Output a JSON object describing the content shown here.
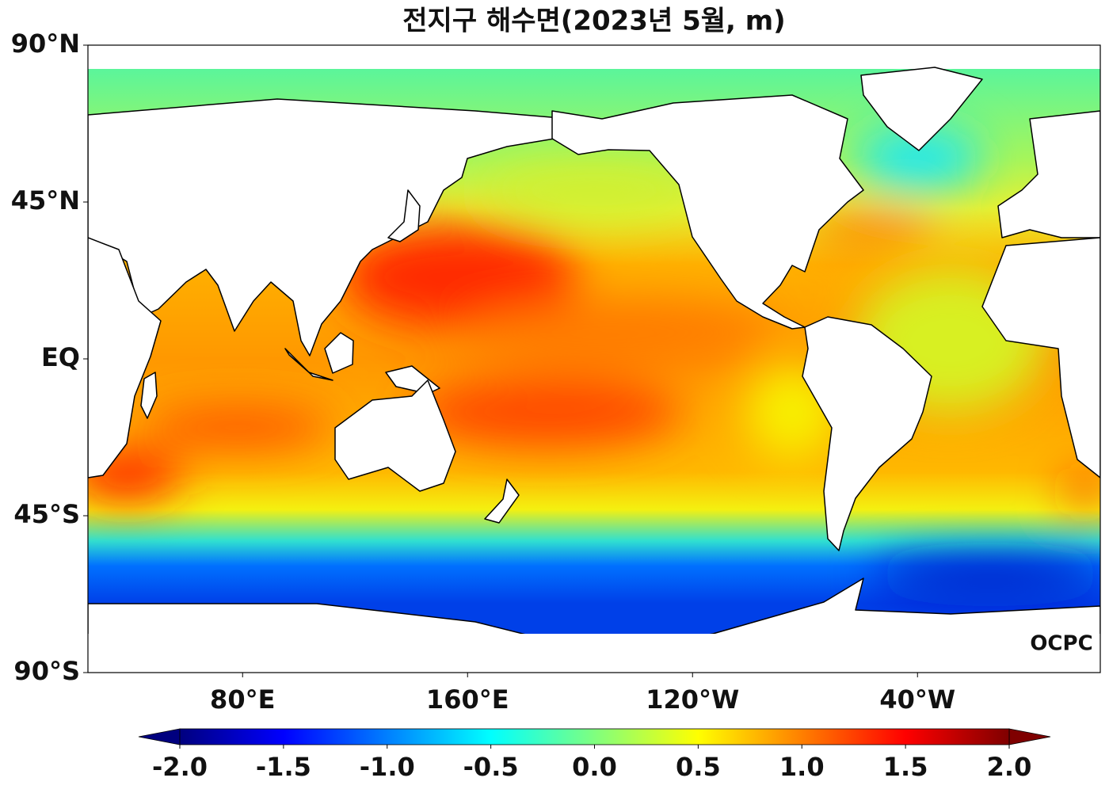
{
  "title": "전지구 해수면(2023년 5월, m)",
  "map": {
    "lon_range": [
      25,
      385
    ],
    "lat_range": [
      -90,
      90
    ],
    "lat_ticks": [
      {
        "value": 90,
        "label": "90°N"
      },
      {
        "value": 45,
        "label": "45°N"
      },
      {
        "value": 0,
        "label": "EQ"
      },
      {
        "value": -45,
        "label": "45°S"
      },
      {
        "value": -90,
        "label": "90°S"
      }
    ],
    "lon_ticks": [
      {
        "value": 80,
        "label": "80°E"
      },
      {
        "value": 160,
        "label": "160°E"
      },
      {
        "value": 240,
        "label": "120°W"
      },
      {
        "value": 320,
        "label": "40°W"
      }
    ]
  },
  "colorbar": {
    "range": [
      -2,
      2
    ],
    "ticks": [
      {
        "value": -2,
        "label": "-2.0"
      },
      -1.5,
      {
        "value": -1,
        "label": "-1.0"
      },
      -0.5,
      {
        "value": 0,
        "label": "0.0"
      },
      0.5,
      {
        "value": 1,
        "label": "1.0"
      },
      1.5,
      {
        "value": 2,
        "label": "2.0"
      }
    ],
    "colors": [
      "#00007f",
      "#0000ff",
      "#007fff",
      "#00ffff",
      "#7fff7f",
      "#ffff00",
      "#ff7f00",
      "#ff0000",
      "#7f0000"
    ]
  },
  "logo": "OCPC"
}
